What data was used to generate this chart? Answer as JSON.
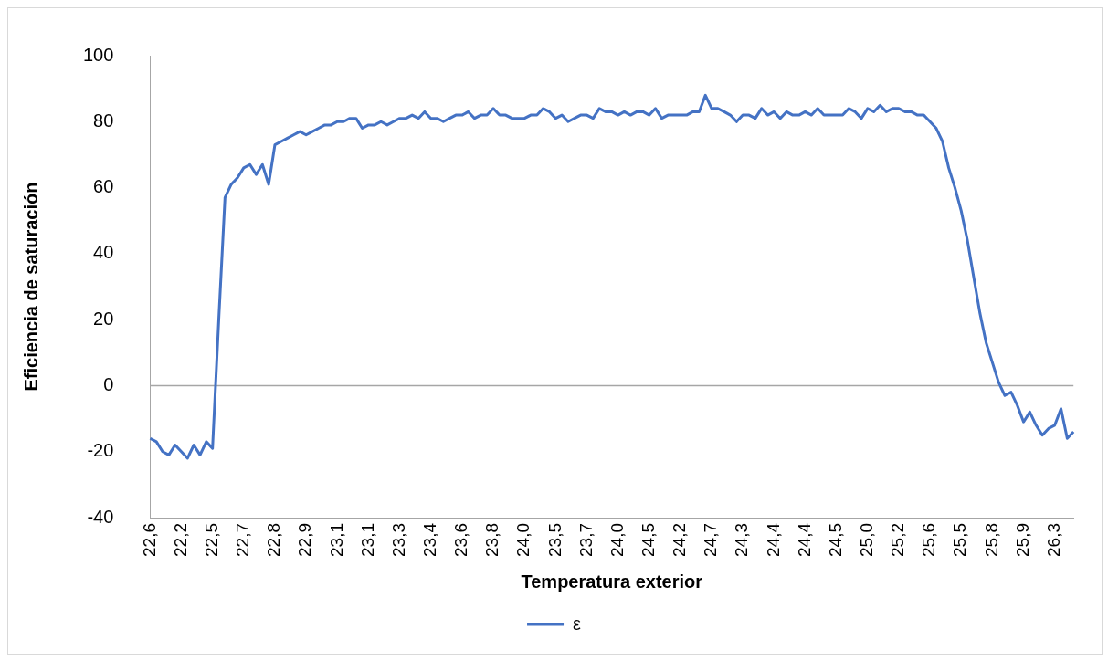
{
  "chart_data": {
    "type": "line",
    "xlabel": "Temperatura exterior",
    "ylabel": "Eficiencia de saturación",
    "categories": [
      "22,6",
      null,
      null,
      null,
      null,
      "22,2",
      null,
      null,
      null,
      null,
      "22,5",
      null,
      null,
      null,
      null,
      "22,7",
      null,
      null,
      null,
      null,
      "22,8",
      null,
      null,
      null,
      null,
      "22,9",
      null,
      null,
      null,
      null,
      "23,1",
      null,
      null,
      null,
      null,
      "23,1",
      null,
      null,
      null,
      null,
      "23,3",
      null,
      null,
      null,
      null,
      "23,4",
      null,
      null,
      null,
      null,
      "23,6",
      null,
      null,
      null,
      null,
      "23,8",
      null,
      null,
      null,
      null,
      "24,0",
      null,
      null,
      null,
      null,
      "23,5",
      null,
      null,
      null,
      null,
      "23,7",
      null,
      null,
      null,
      null,
      "24,0",
      null,
      null,
      null,
      null,
      "24,5",
      null,
      null,
      null,
      null,
      "24,2",
      null,
      null,
      null,
      null,
      "24,7",
      null,
      null,
      null,
      null,
      "24,3",
      null,
      null,
      null,
      null,
      "24,4",
      null,
      null,
      null,
      null,
      "24,4",
      null,
      null,
      null,
      null,
      "24,5",
      null,
      null,
      null,
      null,
      "25,0",
      null,
      null,
      null,
      null,
      "25,2",
      null,
      null,
      null,
      null,
      "25,6",
      null,
      null,
      null,
      null,
      "25,5",
      null,
      null,
      null,
      null,
      "25,8",
      null,
      null,
      null,
      null,
      "25,9",
      null,
      null,
      null,
      null,
      "26,3",
      null,
      null,
      null
    ],
    "series": [
      {
        "name": "ε",
        "color": "#4472c4",
        "values": [
          -16,
          -17,
          -20,
          -21,
          -18,
          -20,
          -22,
          -18,
          -21,
          -17,
          -19,
          20,
          57,
          61,
          63,
          66,
          67,
          64,
          67,
          61,
          73,
          74,
          75,
          76,
          77,
          76,
          77,
          78,
          79,
          79,
          80,
          80,
          81,
          81,
          78,
          79,
          79,
          80,
          79,
          80,
          81,
          81,
          82,
          81,
          83,
          81,
          81,
          80,
          81,
          82,
          82,
          83,
          81,
          82,
          82,
          84,
          82,
          82,
          81,
          81,
          81,
          82,
          82,
          84,
          83,
          81,
          82,
          80,
          81,
          82,
          82,
          81,
          84,
          83,
          83,
          82,
          83,
          82,
          83,
          83,
          82,
          84,
          81,
          82,
          82,
          82,
          82,
          83,
          83,
          88,
          84,
          84,
          83,
          82,
          80,
          82,
          82,
          81,
          84,
          82,
          83,
          81,
          83,
          82,
          82,
          83,
          82,
          84,
          82,
          82,
          82,
          82,
          84,
          83,
          81,
          84,
          83,
          85,
          83,
          84,
          84,
          83,
          83,
          82,
          82,
          80,
          78,
          74,
          66,
          60,
          53,
          44,
          33,
          22,
          13,
          7,
          1,
          -3,
          -2,
          -6,
          -11,
          -8,
          -12,
          -15,
          -13,
          -12,
          -7,
          -16,
          -14
        ]
      }
    ],
    "ylim": [
      -40,
      100
    ],
    "yticks": [
      -40,
      -20,
      0,
      20,
      40,
      60,
      80,
      100
    ],
    "ref_lines": [
      {
        "axis": "y",
        "value": 0,
        "color": "#a6a6a6"
      }
    ],
    "grid": false,
    "legend": "bottom",
    "marker": "none",
    "line_style": "solid"
  }
}
